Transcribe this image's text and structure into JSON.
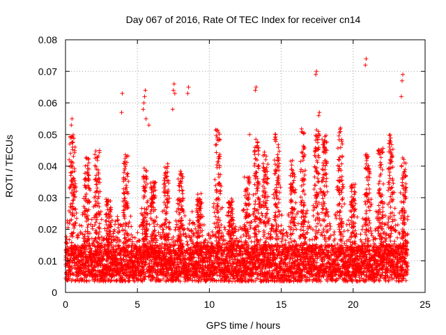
{
  "chart_data": {
    "type": "scatter",
    "title": "Day 067 of 2016, Rate Of TEC Index for receiver cn14",
    "xlabel": "GPS time / hours",
    "ylabel": "ROTI / TECUs",
    "xlim": [
      0,
      25
    ],
    "ylim": [
      0,
      0.08
    ],
    "xticks": [
      0,
      5,
      10,
      15,
      20,
      25
    ],
    "yticks": [
      0,
      0.01,
      0.02,
      0.03,
      0.04,
      0.05,
      0.06,
      0.07,
      0.08
    ],
    "xtick_labels": [
      "0",
      "5",
      "10",
      "15",
      "20",
      "25"
    ],
    "ytick_labels": [
      "0",
      "0.01",
      "0.02",
      "0.03",
      "0.04",
      "0.05",
      "0.06",
      "0.07",
      "0.08"
    ],
    "grid": true,
    "marker": "+",
    "color": "#ff0000",
    "x_range_of_data": [
      0,
      23.8
    ],
    "baseline_band": [
      0.005,
      0.015
    ],
    "outliers": [
      {
        "x": 0.25,
        "y": 0.042
      },
      {
        "x": 0.3,
        "y": 0.047
      },
      {
        "x": 0.35,
        "y": 0.049
      },
      {
        "x": 0.4,
        "y": 0.053
      },
      {
        "x": 0.45,
        "y": 0.055
      },
      {
        "x": 0.5,
        "y": 0.046
      },
      {
        "x": 3.9,
        "y": 0.057
      },
      {
        "x": 3.95,
        "y": 0.063
      },
      {
        "x": 5.4,
        "y": 0.058
      },
      {
        "x": 5.45,
        "y": 0.06
      },
      {
        "x": 5.5,
        "y": 0.062
      },
      {
        "x": 5.55,
        "y": 0.064
      },
      {
        "x": 5.6,
        "y": 0.055
      },
      {
        "x": 5.8,
        "y": 0.053
      },
      {
        "x": 7.45,
        "y": 0.058
      },
      {
        "x": 7.5,
        "y": 0.064
      },
      {
        "x": 7.55,
        "y": 0.066
      },
      {
        "x": 7.6,
        "y": 0.063
      },
      {
        "x": 8.5,
        "y": 0.063
      },
      {
        "x": 8.55,
        "y": 0.065
      },
      {
        "x": 12.8,
        "y": 0.05
      },
      {
        "x": 13.2,
        "y": 0.064
      },
      {
        "x": 13.25,
        "y": 0.065
      },
      {
        "x": 17.4,
        "y": 0.069
      },
      {
        "x": 17.45,
        "y": 0.07
      },
      {
        "x": 17.6,
        "y": 0.056
      },
      {
        "x": 17.65,
        "y": 0.057
      },
      {
        "x": 20.85,
        "y": 0.072
      },
      {
        "x": 20.9,
        "y": 0.074
      },
      {
        "x": 23.35,
        "y": 0.062
      },
      {
        "x": 23.4,
        "y": 0.067
      },
      {
        "x": 23.45,
        "y": 0.069
      }
    ],
    "peaks": [
      {
        "x": 0.5,
        "y": 0.05
      },
      {
        "x": 1.5,
        "y": 0.043
      },
      {
        "x": 2.2,
        "y": 0.045
      },
      {
        "x": 3.0,
        "y": 0.03
      },
      {
        "x": 4.2,
        "y": 0.044
      },
      {
        "x": 5.5,
        "y": 0.04
      },
      {
        "x": 6.1,
        "y": 0.035
      },
      {
        "x": 7.0,
        "y": 0.041
      },
      {
        "x": 8.0,
        "y": 0.039
      },
      {
        "x": 9.3,
        "y": 0.032
      },
      {
        "x": 10.6,
        "y": 0.052
      },
      {
        "x": 11.5,
        "y": 0.03
      },
      {
        "x": 12.6,
        "y": 0.039
      },
      {
        "x": 13.3,
        "y": 0.05
      },
      {
        "x": 13.9,
        "y": 0.045
      },
      {
        "x": 14.7,
        "y": 0.051
      },
      {
        "x": 15.8,
        "y": 0.042
      },
      {
        "x": 16.5,
        "y": 0.052
      },
      {
        "x": 17.5,
        "y": 0.053
      },
      {
        "x": 18.0,
        "y": 0.05
      },
      {
        "x": 19.1,
        "y": 0.053
      },
      {
        "x": 20.0,
        "y": 0.035
      },
      {
        "x": 21.0,
        "y": 0.045
      },
      {
        "x": 21.9,
        "y": 0.046
      },
      {
        "x": 22.6,
        "y": 0.051
      },
      {
        "x": 23.5,
        "y": 0.043
      }
    ]
  }
}
